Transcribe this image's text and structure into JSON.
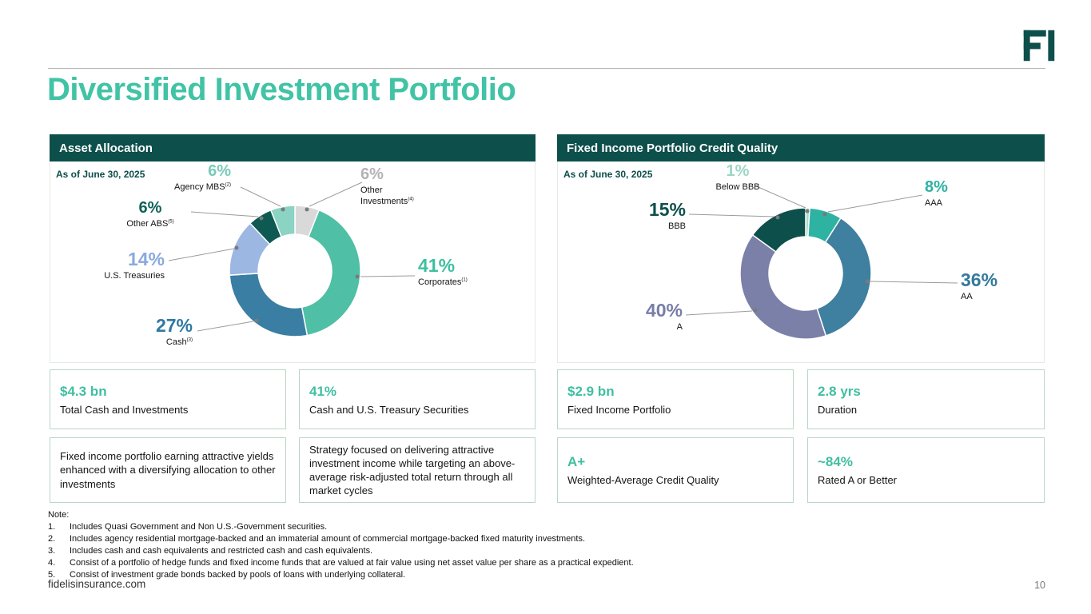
{
  "header": {
    "title": "Diversified Investment Portfolio"
  },
  "panels": [
    {
      "header": "Asset Allocation",
      "as_of": "As of June 30, 2025"
    },
    {
      "header": "Fixed Income Portfolio Credit Quality",
      "as_of": "As of June 30, 2025"
    }
  ],
  "chart_data": [
    {
      "type": "pie",
      "donut": true,
      "title": "Asset Allocation",
      "as_of": "As of June 30, 2025",
      "units": "%",
      "segments": [
        {
          "label": "Other Investments",
          "note_ref": "(4)",
          "value": 6,
          "pct_label": "6%",
          "color": "#d9d9d9",
          "label_color": "#b3b3b3"
        },
        {
          "label": "Corporates",
          "note_ref": "(1)",
          "value": 41,
          "pct_label": "41%",
          "color": "#4fbfa5",
          "label_color": "#3fbfa0"
        },
        {
          "label": "Cash",
          "note_ref": "(3)",
          "value": 27,
          "pct_label": "27%",
          "color": "#3a7ea4",
          "label_color": "#2f79a3"
        },
        {
          "label": "U.S. Treasuries",
          "note_ref": "",
          "value": 14,
          "pct_label": "14%",
          "color": "#9db7e3",
          "label_color": "#8aa9dd"
        },
        {
          "label": "Other ABS",
          "note_ref": "(5)",
          "value": 6,
          "pct_label": "6%",
          "color": "#0e5a52",
          "label_color": "#0e6158"
        },
        {
          "label": "Agency MBS",
          "note_ref": "(2)",
          "value": 6,
          "pct_label": "6%",
          "color": "#8bd3c3",
          "label_color": "#79cbb8"
        }
      ]
    },
    {
      "type": "pie",
      "donut": true,
      "title": "Fixed Income Portfolio Credit Quality",
      "as_of": "As of June 30, 2025",
      "units": "%",
      "segments": [
        {
          "label": "Below BBB",
          "note_ref": "",
          "value": 1,
          "pct_label": "1%",
          "color": "#a7dbcb",
          "label_color": "#9cd6c4"
        },
        {
          "label": "AAA",
          "note_ref": "",
          "value": 8,
          "pct_label": "8%",
          "color": "#2eb2a2",
          "label_color": "#2eb2a2"
        },
        {
          "label": "AA",
          "note_ref": "",
          "value": 36,
          "pct_label": "36%",
          "color": "#3f7f9f",
          "label_color": "#33799d"
        },
        {
          "label": "A",
          "note_ref": "",
          "value": 40,
          "pct_label": "40%",
          "color": "#7b80a9",
          "label_color": "#787da8"
        },
        {
          "label": "BBB",
          "note_ref": "",
          "value": 15,
          "pct_label": "15%",
          "color": "#0c4f4b",
          "label_color": "#0c4f4b"
        }
      ]
    }
  ],
  "stat_cards": {
    "left": [
      {
        "value": "$4.3 bn",
        "label": "Total Cash and Investments"
      },
      {
        "value": "41%",
        "label": "Cash and U.S. Treasury Securities"
      }
    ],
    "left_paragraphs": [
      "Fixed income portfolio earning attractive yields enhanced with a diversifying allocation to other investments",
      "Strategy focused on delivering attractive investment income while targeting an above-average risk-adjusted total return through all market cycles"
    ],
    "right": [
      {
        "value": "$2.9 bn",
        "label": "Fixed Income Portfolio"
      },
      {
        "value": "2.8 yrs",
        "label": "Duration"
      },
      {
        "value": "A+",
        "label": "Weighted-Average Credit Quality"
      },
      {
        "value": "~84%",
        "label": "Rated A or Better"
      }
    ]
  },
  "notes": {
    "heading": "Note:",
    "items": [
      {
        "num": "1.",
        "text": "Includes Quasi Government and Non U.S.-Government securities."
      },
      {
        "num": "2.",
        "text": "Includes agency residential mortgage-backed and an immaterial amount of commercial mortgage-backed fixed maturity investments."
      },
      {
        "num": "3.",
        "text": "Includes cash and cash equivalents and restricted cash and cash equivalents."
      },
      {
        "num": "4.",
        "text": "Consist of a portfolio of hedge funds and fixed income funds that are valued at fair value using net asset value per share as a practical expedient."
      },
      {
        "num": "5.",
        "text": "Consist of investment grade bonds backed by pools of loans with underlying collateral."
      }
    ]
  },
  "footer": {
    "website": "fidelisinsurance.com",
    "page_number": "10"
  },
  "colors": {
    "accent": "#3fbfa2",
    "header_bar": "#0c4f4b",
    "title": "#41c3a5"
  }
}
